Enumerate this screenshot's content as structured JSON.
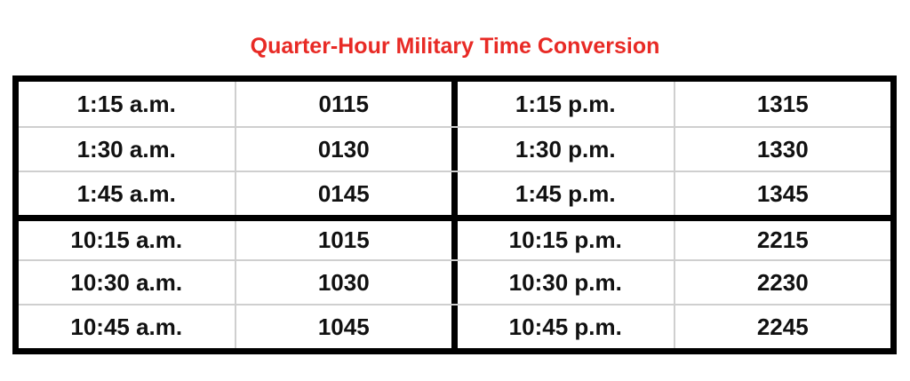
{
  "title": {
    "text": "Quarter-Hour Military Time Conversion",
    "color": "#e82a25"
  },
  "table": {
    "border_color": "#000000",
    "grid_color": "#cfcfcf",
    "text_color": "#111111",
    "rows": [
      [
        "1:15 a.m.",
        "0115",
        "1:15 p.m.",
        "1315"
      ],
      [
        "1:30 a.m.",
        "0130",
        "1:30 p.m.",
        "1330"
      ],
      [
        "1:45 a.m.",
        "0145",
        "1:45 p.m.",
        "1345"
      ],
      [
        "10:15 a.m.",
        "1015",
        "10:15 p.m.",
        "2215"
      ],
      [
        "10:30 a.m.",
        "1030",
        "10:30 p.m.",
        "2230"
      ],
      [
        "10:45 a.m.",
        "1045",
        "10:45 p.m.",
        "2245"
      ]
    ]
  },
  "chart_data": {
    "type": "table",
    "title": "Quarter-Hour Military Time Conversion",
    "rows": [
      {
        "civilian": "1:15 a.m.",
        "military": "0115"
      },
      {
        "civilian": "1:30 a.m.",
        "military": "0130"
      },
      {
        "civilian": "1:45 a.m.",
        "military": "0145"
      },
      {
        "civilian": "10:15 a.m.",
        "military": "1015"
      },
      {
        "civilian": "10:30 a.m.",
        "military": "1030"
      },
      {
        "civilian": "10:45 a.m.",
        "military": "1045"
      },
      {
        "civilian": "1:15 p.m.",
        "military": "1315"
      },
      {
        "civilian": "1:30 p.m.",
        "military": "1330"
      },
      {
        "civilian": "1:45 p.m.",
        "military": "1345"
      },
      {
        "civilian": "10:15 p.m.",
        "military": "2215"
      },
      {
        "civilian": "10:30 p.m.",
        "military": "2230"
      },
      {
        "civilian": "10:45 p.m.",
        "military": "2245"
      }
    ],
    "layout": {
      "grid": "thin gray inner lines, thick black outer border, thick black center vertical divider, thick black divider between row 3 and row 4",
      "title_position": "top-center",
      "title_color": "#e82a25"
    }
  }
}
